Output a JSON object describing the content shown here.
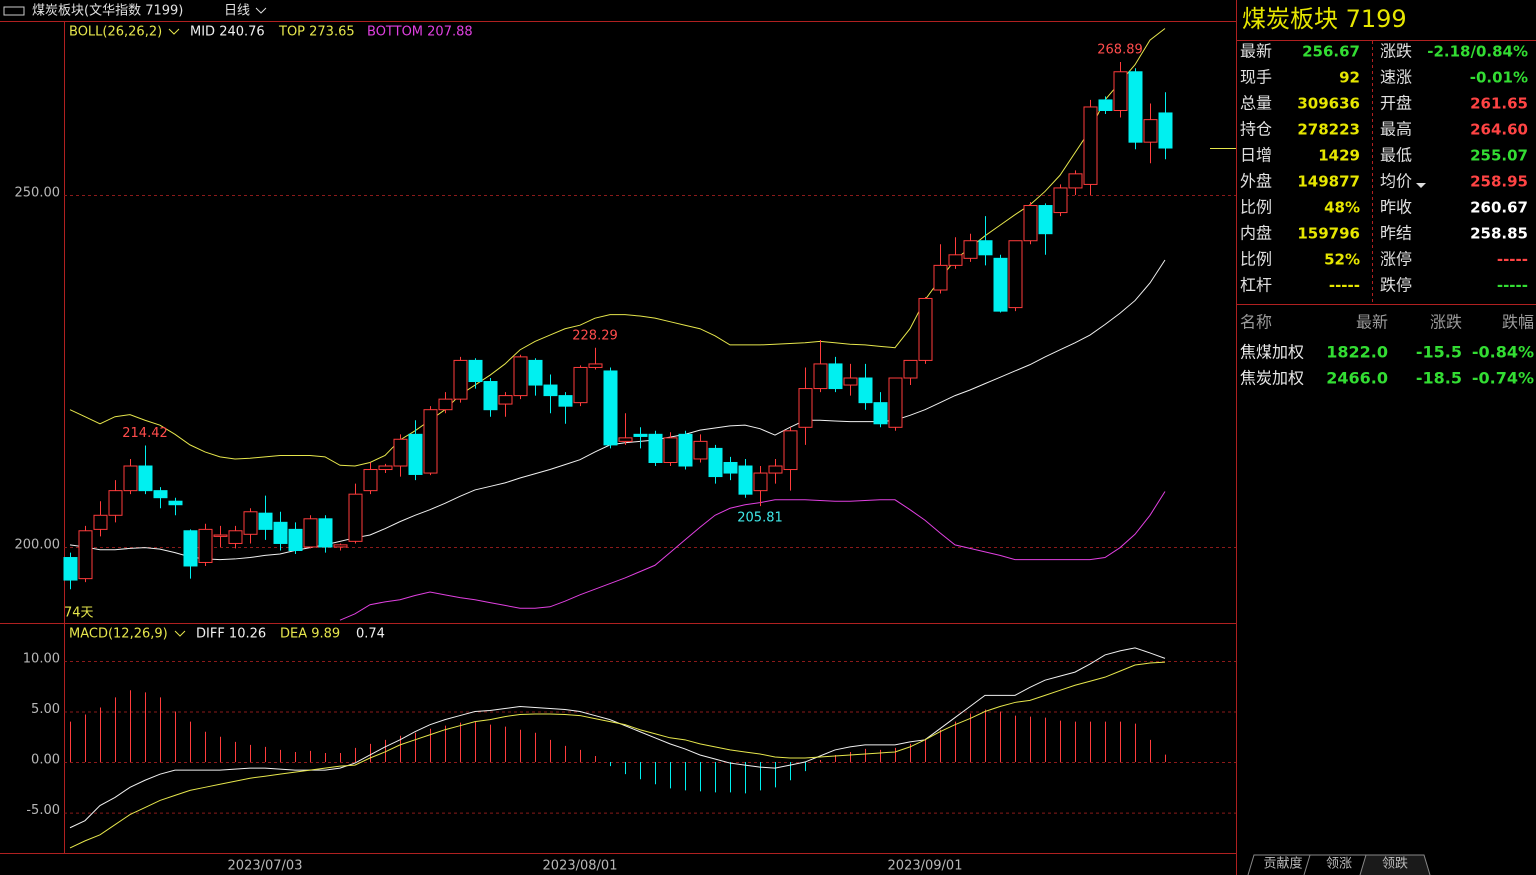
{
  "header": {
    "instrument": "煤炭板块(文华指数 7199)",
    "period": "日线"
  },
  "chart_data": {
    "type": "candlestick",
    "boll_legend": {
      "name": "BOLL(26,26,2)",
      "mid": "MID 240.76",
      "top": "TOP 273.65",
      "bottom": "BOTTOM 207.88"
    },
    "macd_legend": {
      "name": "MACD(12,26,9)",
      "diff": "DIFF 10.26",
      "dea": "DEA 9.89",
      "macd": "0.74"
    },
    "days_label": "74天",
    "up_color": "#ff3c3c",
    "down_color": "#00f0f0",
    "ylim": [
      189.2,
      274.57
    ],
    "yticks": [
      {
        "value": 250,
        "label": "250.00"
      },
      {
        "value": 200,
        "label": "200.00"
      }
    ],
    "grid": true,
    "categories": [
      null,
      null,
      null,
      null,
      null,
      null,
      null,
      null,
      null,
      null,
      null,
      null,
      null,
      "2023/07/03",
      null,
      null,
      null,
      null,
      null,
      null,
      null,
      null,
      null,
      null,
      null,
      null,
      null,
      null,
      null,
      null,
      null,
      null,
      null,
      null,
      "2023/08/01",
      null,
      null,
      null,
      null,
      null,
      null,
      null,
      null,
      null,
      null,
      null,
      null,
      null,
      null,
      null,
      null,
      null,
      null,
      null,
      null,
      null,
      null,
      "2023/09/01",
      null,
      null,
      null,
      null,
      null,
      null,
      null,
      null,
      null,
      null,
      null,
      null,
      null,
      null,
      null,
      null
    ],
    "candles": [
      {
        "open": 198.5,
        "high": 199.2,
        "low": 194,
        "close": 195.3
      },
      {
        "open": 195.5,
        "high": 203,
        "low": 195,
        "close": 202.3
      },
      {
        "open": 202.5,
        "high": 206.5,
        "low": 201.5,
        "close": 204.5
      },
      {
        "open": 204.5,
        "high": 209.5,
        "low": 203.5,
        "close": 208
      },
      {
        "open": 208,
        "high": 212.5,
        "low": 207.5,
        "close": 211.5
      },
      {
        "open": 211.5,
        "high": 214.42,
        "low": 207.5,
        "close": 208
      },
      {
        "open": 208,
        "high": 208.5,
        "low": 205.5,
        "close": 207
      },
      {
        "open": 206.5,
        "high": 207,
        "low": 204.5,
        "close": 206
      },
      {
        "open": 202.3,
        "high": 202.5,
        "low": 195.5,
        "close": 197.3
      },
      {
        "open": 197.8,
        "high": 203.3,
        "low": 197.3,
        "close": 202.5
      },
      {
        "open": 201.5,
        "high": 203,
        "low": 200,
        "close": 201.7
      },
      {
        "open": 200.5,
        "high": 203,
        "low": 199.8,
        "close": 202.3
      },
      {
        "open": 201.8,
        "high": 205.5,
        "low": 200.5,
        "close": 205
      },
      {
        "open": 204.8,
        "high": 207.3,
        "low": 201,
        "close": 202.5
      },
      {
        "open": 203.5,
        "high": 205,
        "low": 199.5,
        "close": 200.5
      },
      {
        "open": 202.5,
        "high": 203.5,
        "low": 199,
        "close": 199.5
      },
      {
        "open": 200,
        "high": 204.5,
        "low": 199.8,
        "close": 204
      },
      {
        "open": 204,
        "high": 204.5,
        "low": 199.2,
        "close": 200
      },
      {
        "open": 200,
        "high": 200.5,
        "low": 199.5,
        "close": 200.3
      },
      {
        "open": 200.8,
        "high": 209,
        "low": 200.5,
        "close": 207.5
      },
      {
        "open": 208,
        "high": 212,
        "low": 207.5,
        "close": 211
      },
      {
        "open": 211,
        "high": 211.8,
        "low": 210.5,
        "close": 211.5
      },
      {
        "open": 211.5,
        "high": 216,
        "low": 210,
        "close": 215.3
      },
      {
        "open": 216,
        "high": 218,
        "low": 209.5,
        "close": 210.3
      },
      {
        "open": 210.5,
        "high": 220,
        "low": 210.2,
        "close": 219.5
      },
      {
        "open": 219.5,
        "high": 222,
        "low": 219,
        "close": 221
      },
      {
        "open": 221,
        "high": 227,
        "low": 220.5,
        "close": 226.5
      },
      {
        "open": 226.5,
        "high": 226.8,
        "low": 222.5,
        "close": 223.5
      },
      {
        "open": 223.5,
        "high": 224,
        "low": 218.5,
        "close": 219.5
      },
      {
        "open": 220.3,
        "high": 222,
        "low": 218.5,
        "close": 221.5
      },
      {
        "open": 221.5,
        "high": 227.3,
        "low": 221,
        "close": 227
      },
      {
        "open": 226.5,
        "high": 226.8,
        "low": 221.5,
        "close": 223
      },
      {
        "open": 223,
        "high": 224.5,
        "low": 219,
        "close": 221.5
      },
      {
        "open": 221.5,
        "high": 222,
        "low": 217.5,
        "close": 220
      },
      {
        "open": 220.5,
        "high": 225.8,
        "low": 220,
        "close": 225.5
      },
      {
        "open": 225.5,
        "high": 228.29,
        "low": 225.2,
        "close": 226
      },
      {
        "open": 225,
        "high": 225.5,
        "low": 214,
        "close": 214.5
      },
      {
        "open": 215,
        "high": 219,
        "low": 214.5,
        "close": 215.5
      },
      {
        "open": 216,
        "high": 217,
        "low": 214,
        "close": 215.7
      },
      {
        "open": 216,
        "high": 216.5,
        "low": 211.5,
        "close": 212
      },
      {
        "open": 212,
        "high": 216.3,
        "low": 211.5,
        "close": 215.5
      },
      {
        "open": 216,
        "high": 216.5,
        "low": 211,
        "close": 211.5
      },
      {
        "open": 212.5,
        "high": 216,
        "low": 212,
        "close": 215
      },
      {
        "open": 214,
        "high": 214.5,
        "low": 209,
        "close": 210
      },
      {
        "open": 212,
        "high": 212.8,
        "low": 209.5,
        "close": 210.5
      },
      {
        "open": 211.5,
        "high": 212.5,
        "low": 207,
        "close": 207.5
      },
      {
        "open": 208,
        "high": 211.5,
        "low": 205.81,
        "close": 210.5
      },
      {
        "open": 210.5,
        "high": 212.5,
        "low": 209,
        "close": 211.5
      },
      {
        "open": 211,
        "high": 217,
        "low": 208,
        "close": 216.5
      },
      {
        "open": 217,
        "high": 225.5,
        "low": 214.5,
        "close": 222.5
      },
      {
        "open": 222.5,
        "high": 229.4,
        "low": 222,
        "close": 226
      },
      {
        "open": 226,
        "high": 227,
        "low": 222,
        "close": 222.5
      },
      {
        "open": 223,
        "high": 226,
        "low": 221.5,
        "close": 224
      },
      {
        "open": 224,
        "high": 226,
        "low": 219.5,
        "close": 220.5
      },
      {
        "open": 220.5,
        "high": 222,
        "low": 217,
        "close": 217.5
      },
      {
        "open": 217,
        "high": 223.8,
        "low": 216.5,
        "close": 224
      },
      {
        "open": 224,
        "high": 226,
        "low": 223,
        "close": 226.5
      },
      {
        "open": 226.5,
        "high": 235.5,
        "low": 226,
        "close": 235.3
      },
      {
        "open": 236.5,
        "high": 243,
        "low": 236,
        "close": 240
      },
      {
        "open": 240,
        "high": 244,
        "low": 239.5,
        "close": 241.5
      },
      {
        "open": 241,
        "high": 244.5,
        "low": 240.5,
        "close": 243.5
      },
      {
        "open": 243.5,
        "high": 247,
        "low": 240,
        "close": 241.5
      },
      {
        "open": 241,
        "high": 241.5,
        "low": 233.3,
        "close": 233.5
      },
      {
        "open": 234,
        "high": 243.5,
        "low": 233.5,
        "close": 243.5
      },
      {
        "open": 243.5,
        "high": 249,
        "low": 243,
        "close": 248.5
      },
      {
        "open": 248.5,
        "high": 248.8,
        "low": 241.5,
        "close": 244.5
      },
      {
        "open": 247.5,
        "high": 251.5,
        "low": 247,
        "close": 251
      },
      {
        "open": 251,
        "high": 253.5,
        "low": 250,
        "close": 253
      },
      {
        "open": 251.5,
        "high": 263.5,
        "low": 250,
        "close": 262.5
      },
      {
        "open": 263.5,
        "high": 264,
        "low": 261.5,
        "close": 262
      },
      {
        "open": 262,
        "high": 268.89,
        "low": 261,
        "close": 267.5
      },
      {
        "open": 267.5,
        "high": 268,
        "low": 256.5,
        "close": 257.5
      },
      {
        "open": 257.5,
        "high": 263,
        "low": 254.5,
        "close": 260.7
      },
      {
        "open": 261.65,
        "high": 264.6,
        "low": 255.07,
        "close": 256.67
      }
    ],
    "series": [
      {
        "name": "TOP",
        "color": "#e6e64c",
        "values": [
          219.5,
          218.5,
          217.5,
          218.5,
          218.8,
          218,
          217.3,
          216,
          214.5,
          213.5,
          212.8,
          212.5,
          212.6,
          212.8,
          213,
          213,
          213,
          212.8,
          211.6,
          211.5,
          212,
          213,
          215.2,
          216.5,
          218,
          219.5,
          221.6,
          223,
          224.4,
          226,
          228,
          229.2,
          230.1,
          231,
          231.5,
          232.5,
          233,
          233,
          232.8,
          232.5,
          232,
          231.5,
          231,
          230,
          228.7,
          228.7,
          228.7,
          228.8,
          228.9,
          229,
          229.2,
          229,
          228.8,
          228.7,
          228.5,
          228.3,
          231,
          235.1,
          238,
          240.8,
          242.5,
          244.2,
          245.7,
          247.2,
          248.6,
          250.5,
          252.8,
          256,
          259.2,
          263.5,
          266,
          268.5,
          272,
          273.65
        ]
      },
      {
        "name": "MID",
        "color": "#f0f0f0",
        "values": [
          200.3,
          200,
          199.6,
          199.6,
          199.8,
          199.9,
          199.7,
          199.2,
          198.6,
          198.3,
          198.2,
          198.3,
          198.5,
          198.8,
          199,
          199.5,
          199.9,
          200.3,
          200.8,
          201.3,
          201.7,
          202.6,
          203.6,
          204.5,
          205.3,
          206.2,
          207.2,
          208.1,
          208.6,
          209.1,
          209.8,
          210.4,
          211,
          211.7,
          212.4,
          213.5,
          214.5,
          214.8,
          215,
          215.2,
          215.6,
          216,
          216.6,
          216.9,
          217.2,
          217.3,
          216.8,
          215.9,
          217,
          218,
          218,
          217.9,
          217.8,
          217.8,
          217.8,
          218,
          218.7,
          219.5,
          220.5,
          221.5,
          222.3,
          223.2,
          224.1,
          225,
          225.9,
          227,
          228,
          229,
          230.1,
          231.6,
          233.2,
          235,
          237.5,
          240.76
        ]
      },
      {
        "name": "BOTTOM",
        "color": "#e040e0",
        "values": [
          null,
          null,
          null,
          null,
          null,
          null,
          null,
          null,
          null,
          null,
          null,
          null,
          null,
          null,
          null,
          null,
          null,
          null,
          189.6,
          190.5,
          191.8,
          192.2,
          192.5,
          193.1,
          193.6,
          193.2,
          192.8,
          192.5,
          192.1,
          191.7,
          191.3,
          191.3,
          191.5,
          192.3,
          193.2,
          194,
          194.8,
          195.6,
          196.5,
          197.4,
          199.2,
          201,
          202.8,
          204.5,
          205.5,
          206,
          206.3,
          206.7,
          206.7,
          206.7,
          206.6,
          206.5,
          206.5,
          206.6,
          206.7,
          206.7,
          205.3,
          203.8,
          202,
          200.3,
          199.8,
          199.3,
          198.8,
          198.2,
          198.2,
          198.2,
          198.2,
          198.2,
          198.2,
          198.5,
          199.9,
          201.8,
          204.5,
          207.88
        ]
      }
    ],
    "macd": {
      "ylim": [
        -9,
        13.76
      ],
      "yticks": [
        {
          "value": 10,
          "label": "10.00"
        },
        {
          "value": 5,
          "label": "5.00"
        },
        {
          "value": 0,
          "label": "0.00"
        },
        {
          "value": -5,
          "label": "-5.00"
        }
      ],
      "bars": [
        4.0,
        4.7,
        5.4,
        6.4,
        7.1,
        6.9,
        6.4,
        5.0,
        4.0,
        3.0,
        2.5,
        2.0,
        1.7,
        1.5,
        1.2,
        1.0,
        1.1,
        0.9,
        0.9,
        1.4,
        1.8,
        2.2,
        2.6,
        2.9,
        3.3,
        3.6,
        3.9,
        4.0,
        3.7,
        3.5,
        3.2,
        2.9,
        2.2,
        1.6,
        1.2,
        0.6,
        -0.4,
        -1.2,
        -1.7,
        -2.2,
        -2.6,
        -2.8,
        -2.9,
        -3.0,
        -3.0,
        -3.1,
        -2.8,
        -2.5,
        -1.8,
        -0.9,
        0.2,
        0.7,
        1.0,
        1.3,
        1.2,
        1.4,
        1.8,
        2.3,
        3.2,
        4.0,
        4.8,
        5.2,
        5.0,
        4.6,
        4.5,
        4.4,
        4.1,
        4.0,
        4.0,
        4.0,
        4.0,
        3.8,
        2.2,
        0.74
      ],
      "series": [
        {
          "name": "DIFF",
          "color": "#f0f0f0",
          "values": [
            -6.5,
            -5.8,
            -4.3,
            -3.5,
            -2.5,
            -1.8,
            -1.2,
            -0.8,
            -0.8,
            -0.8,
            -0.8,
            -0.7,
            -0.6,
            -0.6,
            -0.7,
            -0.8,
            -0.8,
            -0.8,
            -0.6,
            -0.1,
            0.7,
            1.5,
            2.2,
            3.0,
            3.7,
            4.2,
            4.6,
            5.0,
            5.1,
            5.3,
            5.5,
            5.4,
            5.3,
            5.2,
            5.0,
            4.6,
            4.2,
            3.6,
            3.0,
            2.4,
            1.8,
            1.3,
            0.7,
            0.3,
            -0.1,
            -0.3,
            -0.5,
            -0.6,
            -0.3,
            0,
            0.6,
            1.2,
            1.5,
            1.7,
            1.7,
            1.7,
            2.0,
            2.2,
            3.3,
            4.4,
            5.5,
            6.6,
            6.6,
            6.6,
            7.4,
            8.1,
            8.5,
            8.9,
            9.7,
            10.6,
            11.0,
            11.3,
            10.8,
            10.26
          ]
        },
        {
          "name": "DEA",
          "color": "#e6e64c",
          "values": [
            -8.5,
            -7.8,
            -7.2,
            -6.2,
            -5.2,
            -4.5,
            -3.8,
            -3.3,
            -2.8,
            -2.5,
            -2.2,
            -1.9,
            -1.6,
            -1.4,
            -1.2,
            -1.0,
            -0.8,
            -0.6,
            -0.4,
            -0.3,
            0.4,
            1.0,
            1.7,
            2.2,
            2.7,
            3.2,
            3.6,
            4.0,
            4.2,
            4.5,
            4.7,
            4.75,
            4.75,
            4.7,
            4.6,
            4.3,
            4.0,
            3.7,
            3.2,
            2.8,
            2.4,
            2.2,
            1.8,
            1.5,
            1.2,
            1.0,
            0.8,
            0.5,
            0.4,
            0.4,
            0.5,
            0.6,
            0.7,
            0.8,
            0.9,
            1.0,
            1.5,
            2.2,
            3.0,
            3.7,
            4.3,
            5.0,
            5.5,
            5.9,
            6.1,
            6.6,
            7.1,
            7.6,
            8.0,
            8.4,
            9.0,
            9.6,
            9.8,
            9.89
          ]
        }
      ]
    }
  },
  "quote": {
    "title": "煤炭板块  7199",
    "left": [
      {
        "label": "最新",
        "value": "256.67",
        "color": "#33dd33"
      },
      {
        "label": "现手",
        "value": "92",
        "color": "#e6e600"
      },
      {
        "label": "总量",
        "value": "309636",
        "color": "#e6e600"
      },
      {
        "label": "持仓",
        "value": "278223",
        "color": "#e6e600"
      },
      {
        "label": "日增",
        "value": "1429",
        "color": "#e6e600"
      },
      {
        "label": "外盘",
        "value": "149877",
        "color": "#e6e600"
      },
      {
        "label": "比例",
        "value": "48%",
        "color": "#e6e600"
      },
      {
        "label": "内盘",
        "value": "159796",
        "color": "#e6e600"
      },
      {
        "label": "比例",
        "value": "52%",
        "color": "#e6e600"
      },
      {
        "label": "杠杆",
        "value": "-----",
        "color": "#e6e600"
      }
    ],
    "right": [
      {
        "label": "涨跌",
        "value": "-2.18/0.84%",
        "color": "#33dd33"
      },
      {
        "label": "速涨",
        "value": "-0.01%",
        "color": "#33dd33"
      },
      {
        "label": "开盘",
        "value": "261.65",
        "color": "#ff4444"
      },
      {
        "label": "最高",
        "value": "264.60",
        "color": "#ff4444"
      },
      {
        "label": "最低",
        "value": "255.07",
        "color": "#33dd33"
      },
      {
        "label": "均价",
        "value": "258.95",
        "color": "#ff4444"
      },
      {
        "label": "昨收",
        "value": "260.67",
        "color": "#ffffff"
      },
      {
        "label": "昨结",
        "value": "258.85",
        "color": "#ffffff"
      },
      {
        "label": "涨停",
        "value": "-----",
        "color": "#ff4444"
      },
      {
        "label": "跌停",
        "value": "-----",
        "color": "#33dd33"
      }
    ]
  },
  "sectors": {
    "columns": [
      "名称",
      "最新",
      "涨跌",
      "跌幅"
    ],
    "rows": [
      [
        "焦煤加权",
        "1822.0",
        "-15.5",
        "-0.84%"
      ],
      [
        "焦炭加权",
        "2466.0",
        "-18.5",
        "-0.74%"
      ]
    ]
  },
  "tabs": [
    "贡献度",
    "领涨",
    "领跌"
  ]
}
